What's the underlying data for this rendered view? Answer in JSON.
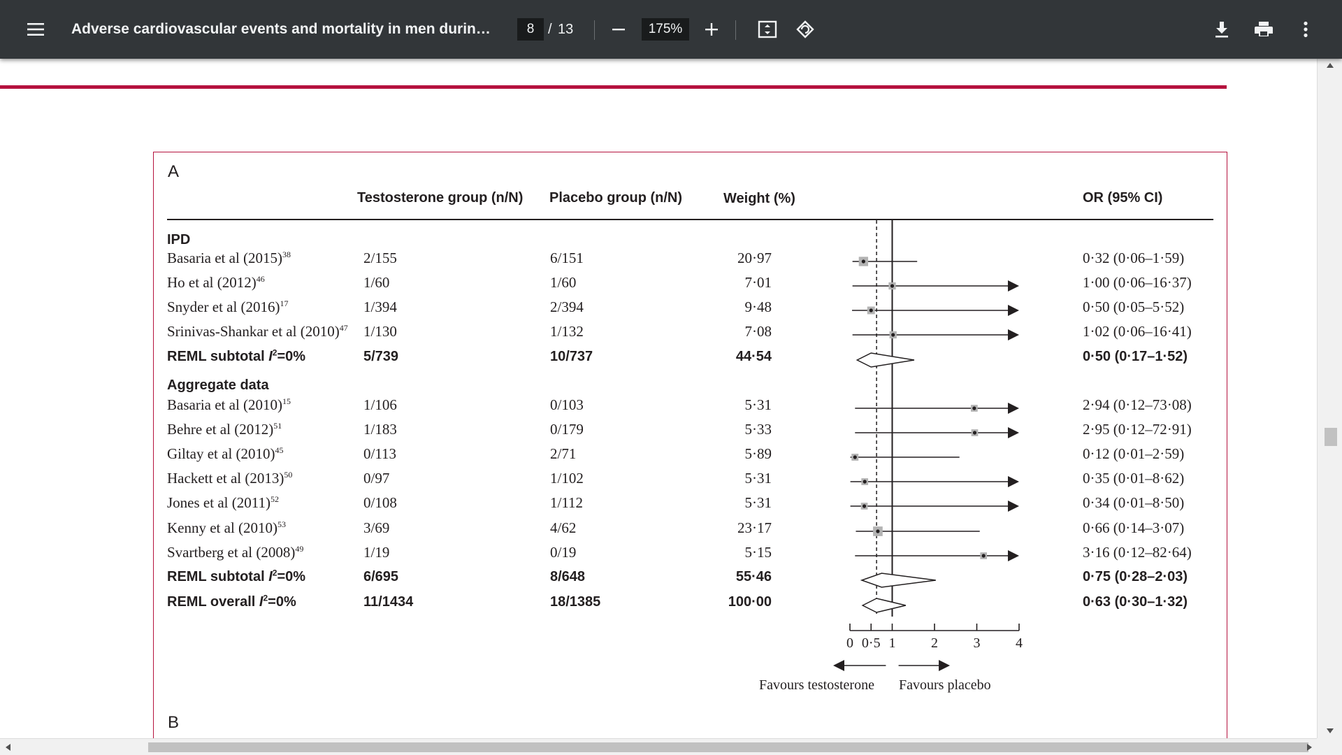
{
  "toolbar": {
    "menu_icon": "hamburger-menu-icon",
    "title": "Adverse cardiovascular events and mortality in men during test...",
    "page_current": "8",
    "page_separator": "/",
    "page_total": "13",
    "zoom": "175%",
    "zoom_out_icon": "minus-icon",
    "zoom_in_icon": "plus-icon",
    "fit_icon": "fit-to-page-icon",
    "rotate_icon": "rotate-icon",
    "download_icon": "download-icon",
    "print_icon": "print-icon",
    "more_icon": "more-vert-icon"
  },
  "figure": {
    "panel_a": "A",
    "panel_b": "B",
    "headers": {
      "testosterone": "Testosterone group (n/N)",
      "placebo": "Placebo group (n/N)",
      "weight": "Weight (%)",
      "or": "OR (95% CI)"
    },
    "sections": {
      "ipd": "IPD",
      "aggregate": "Aggregate data"
    },
    "rows": [
      {
        "study": "Basaria et al (2015)",
        "ref": "38",
        "t": "2/155",
        "p": "6/151",
        "w": "20·97",
        "or": "0·32 (0·06–1·59)",
        "bold": false
      },
      {
        "study": "Ho et al (2012)",
        "ref": "46",
        "t": "1/60",
        "p": "1/60",
        "w": "7·01",
        "or": "1·00 (0·06–16·37)",
        "bold": false
      },
      {
        "study": "Snyder et al (2016)",
        "ref": "17",
        "t": "1/394",
        "p": "2/394",
        "w": "9·48",
        "or": "0·50 (0·05–5·52)",
        "bold": false
      },
      {
        "study": "Srinivas-Shankar et al (2010)",
        "ref": "47",
        "t": "1/130",
        "p": "1/132",
        "w": "7·08",
        "or": "1·02 (0·06–16·41)",
        "bold": false
      },
      {
        "study": "REML subtotal I²=0%",
        "ref": "",
        "t": "5/739",
        "p": "10/737",
        "w": "44·54",
        "or": "0·50 (0·17–1·52)",
        "bold": true
      },
      {
        "study": "Basaria et al (2010)",
        "ref": "15",
        "t": "1/106",
        "p": "0/103",
        "w": "5·31",
        "or": "2·94 (0·12–73·08)",
        "bold": false
      },
      {
        "study": "Behre et al (2012)",
        "ref": "51",
        "t": "1/183",
        "p": "0/179",
        "w": "5·33",
        "or": "2·95 (0·12–72·91)",
        "bold": false
      },
      {
        "study": "Giltay et al (2010)",
        "ref": "45",
        "t": "0/113",
        "p": "2/71",
        "w": "5·89",
        "or": "0·12 (0·01–2·59)",
        "bold": false
      },
      {
        "study": "Hackett et al (2013)",
        "ref": "50",
        "t": "0/97",
        "p": "1/102",
        "w": "5·31",
        "or": "0·35 (0·01–8·62)",
        "bold": false
      },
      {
        "study": "Jones et al (2011)",
        "ref": "52",
        "t": "0/108",
        "p": "1/112",
        "w": "5·31",
        "or": "0·34 (0·01–8·50)",
        "bold": false
      },
      {
        "study": "Kenny et al (2010)",
        "ref": "53",
        "t": "3/69",
        "p": "4/62",
        "w": "23·17",
        "or": "0·66 (0·14–3·07)",
        "bold": false
      },
      {
        "study": "Svartberg et al (2008)",
        "ref": "49",
        "t": "1/19",
        "p": "0/19",
        "w": "5·15",
        "or": "3·16 (0·12–82·64)",
        "bold": false
      },
      {
        "study": "REML subtotal I²=0%",
        "ref": "",
        "t": "6/695",
        "p": "8/648",
        "w": "55·46",
        "or": "0·75 (0·28–2·03)",
        "bold": true
      },
      {
        "study": "REML overall I²=0%",
        "ref": "",
        "t": "11/1434",
        "p": "18/1385",
        "w": "100·00",
        "or": "0·63 (0·30–1·32)",
        "bold": true
      }
    ],
    "axis_ticks": [
      "0",
      "0·5",
      "1",
      "2",
      "3",
      "4"
    ],
    "favours_left": "Favours testosterone",
    "favours_right": "Favours placebo"
  },
  "chart_data": {
    "type": "forest",
    "xlim": [
      0,
      4
    ],
    "reference_line": 1,
    "dashed_line": 0.63,
    "studies": [
      {
        "or": 0.32,
        "lo": 0.06,
        "hi": 1.59
      },
      {
        "or": 1.0,
        "lo": 0.06,
        "hi": 16.37
      },
      {
        "or": 0.5,
        "lo": 0.05,
        "hi": 5.52
      },
      {
        "or": 1.02,
        "lo": 0.06,
        "hi": 16.41
      },
      {
        "or": 0.5,
        "lo": 0.17,
        "hi": 1.52,
        "summary": true
      },
      {
        "or": 2.94,
        "lo": 0.12,
        "hi": 73.08
      },
      {
        "or": 2.95,
        "lo": 0.12,
        "hi": 72.91
      },
      {
        "or": 0.12,
        "lo": 0.01,
        "hi": 2.59
      },
      {
        "or": 0.35,
        "lo": 0.01,
        "hi": 8.62
      },
      {
        "or": 0.34,
        "lo": 0.01,
        "hi": 8.5
      },
      {
        "or": 0.66,
        "lo": 0.14,
        "hi": 3.07
      },
      {
        "or": 3.16,
        "lo": 0.12,
        "hi": 82.64
      },
      {
        "or": 0.75,
        "lo": 0.28,
        "hi": 2.03,
        "summary": true
      },
      {
        "or": 0.63,
        "lo": 0.3,
        "hi": 1.32,
        "summary": true
      }
    ]
  }
}
